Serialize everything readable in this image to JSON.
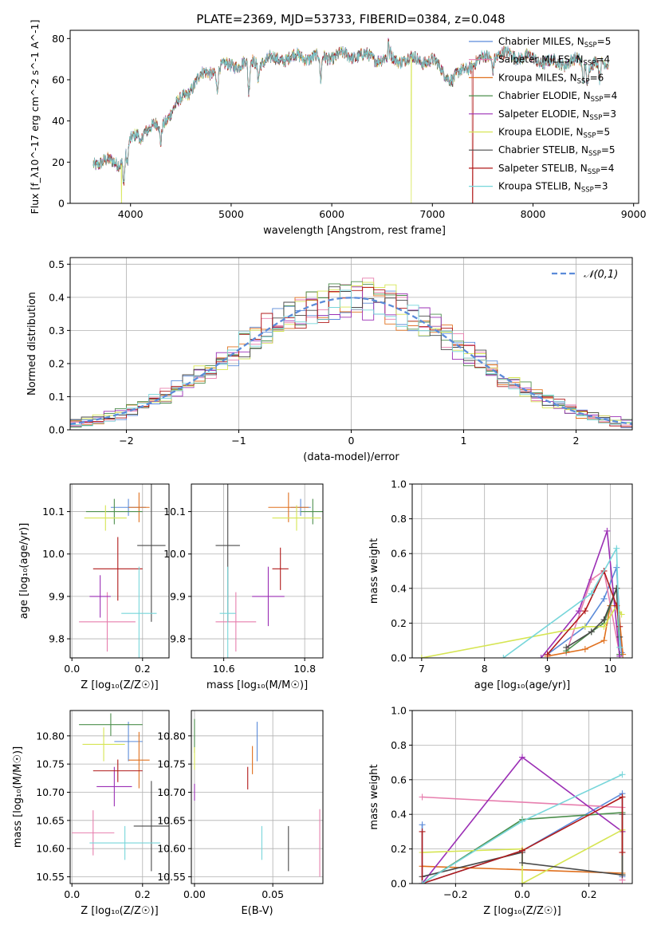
{
  "figure": {
    "title": "PLATE=2369, MJD=53733, FIBERID=0384, z=0.048",
    "colors": {
      "chabrier_miles": "#5b8bd9",
      "salpeter_miles": "#e77fae",
      "kroupa_miles": "#e0701e",
      "chabrier_elodie": "#4d8f4d",
      "salpeter_elodie": "#9b2fb5",
      "kroupa_elodie": "#d6e553",
      "chabrier_stelib": "#4a4a4a",
      "salpeter_stelib": "#b11a1a",
      "kroupa_stelib": "#77d6da",
      "gaussian": "#5b8bd9"
    }
  },
  "legend": [
    {
      "label": "Chabrier MILES, N",
      "sub": "SSP",
      "eq": "=5",
      "color": "#5b8bd9"
    },
    {
      "label": "Salpeter MILES, N",
      "sub": "SSP",
      "eq": "=4",
      "color": "#e77fae"
    },
    {
      "label": "Kroupa MILES, N",
      "sub": "SSP",
      "eq": "=6",
      "color": "#e0701e"
    },
    {
      "label": "Chabrier ELODIE, N",
      "sub": "SSP",
      "eq": "=4",
      "color": "#4d8f4d"
    },
    {
      "label": "Salpeter ELODIE, N",
      "sub": "SSP",
      "eq": "=3",
      "color": "#9b2fb5"
    },
    {
      "label": "Kroupa ELODIE, N",
      "sub": "SSP",
      "eq": "=5",
      "color": "#d6e553"
    },
    {
      "label": "Chabrier STELIB, N",
      "sub": "SSP",
      "eq": "=5",
      "color": "#4a4a4a"
    },
    {
      "label": "Salpeter STELIB, N",
      "sub": "SSP",
      "eq": "=4",
      "color": "#b11a1a"
    },
    {
      "label": "Kroupa STELIB, N",
      "sub": "SSP",
      "eq": "=3",
      "color": "#77d6da"
    }
  ],
  "chart_data": [
    {
      "id": "spectrum",
      "type": "line",
      "xlabel": "wavelength [Angstrom, rest frame]",
      "ylabel": "Flux [f_λ10^-17 erg cm^-2 s^-1 A^-1]",
      "xlim": [
        3400,
        9050
      ],
      "ylim": [
        0,
        84
      ],
      "xticks": [
        4000,
        5000,
        6000,
        7000,
        8000,
        9000
      ],
      "yticks": [
        0,
        20,
        40,
        60,
        80
      ],
      "grid": false,
      "x_range": [
        3630,
        8750
      ],
      "continuum_nodes": [
        [
          3630,
          20
        ],
        [
          3900,
          20
        ],
        [
          3960,
          28
        ],
        [
          4100,
          35
        ],
        [
          4300,
          38
        ],
        [
          4500,
          50
        ],
        [
          4700,
          62
        ],
        [
          4900,
          66
        ],
        [
          5100,
          68
        ],
        [
          5300,
          69
        ],
        [
          5600,
          71
        ],
        [
          5900,
          71
        ],
        [
          6200,
          72
        ],
        [
          6560,
          70
        ],
        [
          6800,
          70
        ],
        [
          7000,
          69
        ],
        [
          7200,
          60
        ],
        [
          7400,
          68
        ],
        [
          7600,
          72
        ],
        [
          7800,
          72
        ],
        [
          8000,
          70
        ],
        [
          8200,
          68
        ],
        [
          8400,
          69
        ],
        [
          8600,
          68
        ],
        [
          8750,
          68
        ]
      ],
      "absorption_lines": [
        [
          3934,
          -14
        ],
        [
          3968,
          -10
        ],
        [
          4102,
          -6
        ],
        [
          4300,
          -9
        ],
        [
          4861,
          -10
        ],
        [
          5175,
          -16
        ],
        [
          5270,
          -7
        ],
        [
          5890,
          -12
        ],
        [
          6563,
          -4
        ],
        [
          7600,
          -6
        ],
        [
          8498,
          -8
        ],
        [
          8542,
          -10
        ],
        [
          8662,
          -9
        ]
      ],
      "emission_spikes": [
        [
          6563,
          14
        ],
        [
          6583,
          6
        ]
      ],
      "dropouts": [
        {
          "series": 5,
          "x": 3910
        },
        {
          "series": 5,
          "x": 6790
        },
        {
          "series": 7,
          "x": 7400
        }
      ]
    },
    {
      "id": "residual_hist",
      "type": "step",
      "xlabel": "(data-model)/error",
      "ylabel": "Normed distribution",
      "xlim": [
        -2.5,
        2.5
      ],
      "ylim": [
        0,
        0.52
      ],
      "xticks": [
        -2,
        -1,
        0,
        1,
        2
      ],
      "yticks": [
        0.0,
        0.1,
        0.2,
        0.3,
        0.4,
        0.5
      ],
      "grid": true,
      "bin_width": 0.1,
      "gaussian_label": "𝒩(0,1)",
      "legend_loc": "upper right"
    },
    {
      "id": "age_vs_Z",
      "type": "errorbar",
      "xlabel": "Z [log₁₀(Z/Z☉)]",
      "ylabel": "age  [log₁₀(age/yr)]",
      "xlim": [
        -0.005,
        0.275
      ],
      "ylim": [
        9.755,
        10.165
      ],
      "xticks": [
        0.0,
        0.2
      ],
      "yticks": [
        9.8,
        9.9,
        10.0,
        10.1
      ],
      "grid": true,
      "points": [
        {
          "s": 0,
          "x": 0.16,
          "y": 10.11,
          "xerr": 0.05,
          "yerr": 0.02
        },
        {
          "s": 1,
          "x": 0.1,
          "y": 9.84,
          "xerr": 0.08,
          "yerr": 0.07
        },
        {
          "s": 2,
          "x": 0.19,
          "y": 10.11,
          "xerr": 0.03,
          "yerr": 0.035
        },
        {
          "s": 3,
          "x": 0.12,
          "y": 10.1,
          "xerr": 0.08,
          "yerr": 0.03
        },
        {
          "s": 4,
          "x": 0.08,
          "y": 9.9,
          "xerr": 0.03,
          "yerr": 0.05
        },
        {
          "s": 5,
          "x": 0.095,
          "y": 10.085,
          "xerr": 0.06,
          "yerr": 0.03
        },
        {
          "s": 6,
          "x": 0.225,
          "y": 10.02,
          "xerr": 0.04,
          "yerr": 0.18
        },
        {
          "s": 7,
          "x": 0.13,
          "y": 9.965,
          "xerr": 0.07,
          "yerr": 0.075
        },
        {
          "s": 8,
          "x": 0.19,
          "y": 9.86,
          "xerr": 0.05,
          "yerr": 0.11
        }
      ]
    },
    {
      "id": "age_vs_mass",
      "type": "errorbar",
      "xlabel": "mass [log₁₀(M/M☉)]",
      "ylabel": "",
      "xlim": [
        10.52,
        10.845
      ],
      "ylim": [
        9.755,
        10.165
      ],
      "xticks": [
        10.6,
        10.8
      ],
      "yticks": [
        9.8,
        9.9,
        10.0,
        10.1
      ],
      "grid": true,
      "points": [
        {
          "s": 0,
          "x": 10.79,
          "y": 10.11,
          "xerr": 0.025,
          "yerr": 0.02
        },
        {
          "s": 1,
          "x": 10.63,
          "y": 9.84,
          "xerr": 0.05,
          "yerr": 0.07
        },
        {
          "s": 2,
          "x": 10.76,
          "y": 10.11,
          "xerr": 0.05,
          "yerr": 0.035
        },
        {
          "s": 3,
          "x": 10.82,
          "y": 10.1,
          "xerr": 0.03,
          "yerr": 0.03
        },
        {
          "s": 4,
          "x": 10.71,
          "y": 9.9,
          "xerr": 0.04,
          "yerr": 0.07
        },
        {
          "s": 5,
          "x": 10.78,
          "y": 10.085,
          "xerr": 0.06,
          "yerr": 0.03
        },
        {
          "s": 6,
          "x": 10.61,
          "y": 10.02,
          "xerr": 0.03,
          "yerr": 0.18
        },
        {
          "s": 7,
          "x": 10.74,
          "y": 9.965,
          "xerr": 0.02,
          "yerr": 0.05
        },
        {
          "s": 8,
          "x": 10.61,
          "y": 9.86,
          "xerr": 0.02,
          "yerr": 0.11
        }
      ]
    },
    {
      "id": "mass_weight_vs_age",
      "type": "line",
      "xlabel": "age  [log₁₀(age/yr)]",
      "ylabel": "mass weight",
      "xlim": [
        6.85,
        10.35
      ],
      "ylim": [
        0,
        1
      ],
      "xticks": [
        7,
        8,
        9,
        10
      ],
      "yticks": [
        0.0,
        0.2,
        0.4,
        0.6,
        0.8,
        1.0
      ],
      "grid": true,
      "series": [
        {
          "s": 0,
          "points": [
            [
              9.0,
              0.02
            ],
            [
              9.6,
              0.18
            ],
            [
              9.9,
              0.34
            ],
            [
              10.1,
              0.52
            ],
            [
              10.18,
              0.03
            ]
          ]
        },
        {
          "s": 1,
          "points": [
            [
              9.3,
              0.03
            ],
            [
              9.7,
              0.45
            ],
            [
              9.9,
              0.5
            ],
            [
              10.15,
              0.02
            ]
          ]
        },
        {
          "s": 2,
          "points": [
            [
              9.0,
              0.01
            ],
            [
              9.6,
              0.05
            ],
            [
              9.9,
              0.1
            ],
            [
              10.0,
              0.3
            ],
            [
              10.1,
              0.4
            ],
            [
              10.2,
              0.02
            ]
          ]
        },
        {
          "s": 3,
          "points": [
            [
              9.3,
              0.04
            ],
            [
              9.7,
              0.15
            ],
            [
              9.9,
              0.2
            ],
            [
              10.1,
              0.4
            ],
            [
              10.15,
              0.02
            ]
          ]
        },
        {
          "s": 4,
          "points": [
            [
              8.9,
              0.0
            ],
            [
              9.5,
              0.27
            ],
            [
              9.95,
              0.73
            ],
            [
              10.15,
              0.01
            ]
          ]
        },
        {
          "s": 5,
          "points": [
            [
              7.0,
              0.0
            ],
            [
              9.6,
              0.18
            ],
            [
              9.9,
              0.18
            ],
            [
              10.1,
              0.3
            ],
            [
              10.18,
              0.25
            ]
          ]
        },
        {
          "s": 6,
          "points": [
            [
              9.3,
              0.06
            ],
            [
              9.7,
              0.15
            ],
            [
              9.9,
              0.22
            ],
            [
              10.1,
              0.4
            ],
            [
              10.15,
              0.12
            ]
          ]
        },
        {
          "s": 7,
          "points": [
            [
              9.0,
              0.02
            ],
            [
              9.6,
              0.27
            ],
            [
              9.9,
              0.5
            ],
            [
              10.1,
              0.3
            ],
            [
              10.15,
              0.18
            ]
          ]
        },
        {
          "s": 8,
          "points": [
            [
              8.3,
              0.0
            ],
            [
              9.7,
              0.37
            ],
            [
              10.1,
              0.63
            ],
            [
              10.15,
              0.06
            ]
          ]
        }
      ]
    },
    {
      "id": "mass_vs_Z",
      "type": "errorbar",
      "xlabel": "Z [log₁₀(Z/Z☉)]",
      "ylabel": "mass [log₁₀(M/M☉)]",
      "xlim": [
        -0.005,
        0.275
      ],
      "ylim": [
        10.538,
        10.845
      ],
      "xticks": [
        0.0,
        0.2
      ],
      "yticks": [
        10.55,
        10.6,
        10.65,
        10.7,
        10.75,
        10.8
      ],
      "grid": true,
      "points": [
        {
          "s": 0,
          "x": 0.16,
          "y": 10.79,
          "xerr": 0.04,
          "yerr": 0.035
        },
        {
          "s": 1,
          "x": 0.06,
          "y": 10.628,
          "xerr": 0.06,
          "yerr": 0.04
        },
        {
          "s": 2,
          "x": 0.19,
          "y": 10.757,
          "xerr": 0.03,
          "yerr": 0.05
        },
        {
          "s": 3,
          "x": 0.11,
          "y": 10.82,
          "xerr": 0.09,
          "yerr": 0.02
        },
        {
          "s": 4,
          "x": 0.12,
          "y": 10.71,
          "xerr": 0.05,
          "yerr": 0.035
        },
        {
          "s": 5,
          "x": 0.09,
          "y": 10.785,
          "xerr": 0.06,
          "yerr": 0.03
        },
        {
          "s": 6,
          "x": 0.225,
          "y": 10.64,
          "xerr": 0.05,
          "yerr": 0.08
        },
        {
          "s": 7,
          "x": 0.13,
          "y": 10.738,
          "xerr": 0.07,
          "yerr": 0.02
        },
        {
          "s": 8,
          "x": 0.15,
          "y": 10.61,
          "xerr": 0.1,
          "yerr": 0.03
        }
      ]
    },
    {
      "id": "mass_vs_ebv",
      "type": "errorbar",
      "xlabel": "E(B-V)",
      "ylabel": "",
      "xlim": [
        -0.002,
        0.082
      ],
      "ylim": [
        10.538,
        10.845
      ],
      "xticks": [
        0.0,
        0.05
      ],
      "yticks": [
        10.55,
        10.6,
        10.65,
        10.7,
        10.75,
        10.8
      ],
      "grid": true,
      "points": [
        {
          "s": 0,
          "x": 0.04,
          "y": 10.79,
          "xerr": 0,
          "yerr": 0.035
        },
        {
          "s": 1,
          "x": 0.08,
          "y": 10.61,
          "xerr": 0,
          "yerr": 0.06
        },
        {
          "s": 2,
          "x": 0.037,
          "y": 10.757,
          "xerr": 0,
          "yerr": 0.025
        },
        {
          "s": 3,
          "x": 0.0,
          "y": 10.8,
          "xerr": 0,
          "yerr": 0.03
        },
        {
          "s": 4,
          "x": 0.0,
          "y": 10.7,
          "xerr": 0,
          "yerr": 0.015
        },
        {
          "s": 5,
          "x": 0.0,
          "y": 10.76,
          "xerr": 0,
          "yerr": 0.02
        },
        {
          "s": 6,
          "x": 0.06,
          "y": 10.6,
          "xerr": 0,
          "yerr": 0.04
        },
        {
          "s": 7,
          "x": 0.034,
          "y": 10.725,
          "xerr": 0,
          "yerr": 0.02
        },
        {
          "s": 8,
          "x": 0.043,
          "y": 10.61,
          "xerr": 0,
          "yerr": 0.03
        }
      ]
    },
    {
      "id": "mass_weight_vs_Z",
      "type": "line",
      "xlabel": "Z [log₁₀(Z/Z☉)]",
      "ylabel": "mass weight",
      "xlim": [
        -0.33,
        0.33
      ],
      "ylim": [
        0,
        1
      ],
      "xticks": [
        -0.2,
        0.0,
        0.2
      ],
      "yticks": [
        0.0,
        0.2,
        0.4,
        0.6,
        0.8,
        1.0
      ],
      "grid": true,
      "series": [
        {
          "s": 0,
          "points": [
            [
              -0.3,
              0.34
            ],
            [
              -0.3,
              0.0
            ],
            [
              0.0,
              0.19
            ],
            [
              0.3,
              0.52
            ],
            [
              0.3,
              0.04
            ]
          ]
        },
        {
          "s": 1,
          "points": [
            [
              -0.3,
              0.5
            ],
            [
              0.3,
              0.44
            ],
            [
              0.3,
              0.02
            ]
          ]
        },
        {
          "s": 2,
          "points": [
            [
              -0.3,
              0.1
            ],
            [
              0.3,
              0.06
            ],
            [
              0.3,
              0.3
            ]
          ]
        },
        {
          "s": 3,
          "points": [
            [
              -0.3,
              0.0
            ],
            [
              0.0,
              0.37
            ],
            [
              0.3,
              0.41
            ],
            [
              0.3,
              0.05
            ]
          ]
        },
        {
          "s": 4,
          "points": [
            [
              -0.3,
              0.0
            ],
            [
              0.0,
              0.73
            ],
            [
              0.3,
              0.3
            ]
          ]
        },
        {
          "s": 5,
          "points": [
            [
              -0.3,
              0.18
            ],
            [
              0.0,
              0.2
            ],
            [
              0.0,
              0.0
            ],
            [
              0.3,
              0.31
            ]
          ]
        },
        {
          "s": 6,
          "points": [
            [
              -0.3,
              0.04
            ],
            [
              0.0,
              0.18
            ],
            [
              0.0,
              0.12
            ],
            [
              0.3,
              0.05
            ],
            [
              0.3,
              0.4
            ]
          ]
        },
        {
          "s": 7,
          "points": [
            [
              -0.3,
              0.3
            ],
            [
              -0.3,
              0.0
            ],
            [
              0.0,
              0.19
            ],
            [
              0.3,
              0.5
            ],
            [
              0.3,
              0.18
            ]
          ]
        },
        {
          "s": 8,
          "points": [
            [
              -0.3,
              0.0
            ],
            [
              0.0,
              0.36
            ],
            [
              0.3,
              0.63
            ]
          ]
        }
      ]
    }
  ]
}
